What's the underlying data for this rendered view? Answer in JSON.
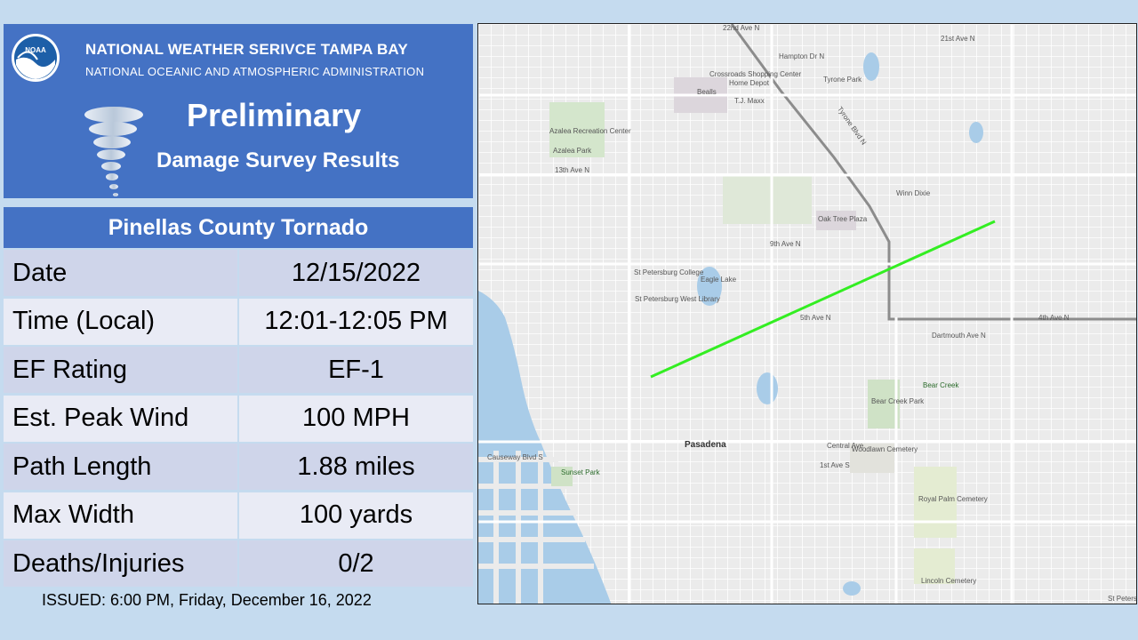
{
  "header": {
    "org_name": "NATIONAL WEATHER SERIVCE TAMPA BAY",
    "org_sub": "NATIONAL OCEANIC AND ATMOSPHERIC ADMINISTRATION",
    "logo_text": "NOAA",
    "title": "Preliminary",
    "subtitle": "Damage Survey Results"
  },
  "table": {
    "title": "Pinellas County Tornado",
    "rows": [
      {
        "label": "Date",
        "value": "12/15/2022"
      },
      {
        "label": "Time (Local)",
        "value": "12:01-12:05 PM"
      },
      {
        "label": "EF Rating",
        "value": "EF-1"
      },
      {
        "label": "Est. Peak Wind",
        "value": "100 MPH"
      },
      {
        "label": "Path Length",
        "value": "1.88 miles"
      },
      {
        "label": "Max Width",
        "value": "100 yards"
      },
      {
        "label": "Deaths/Injuries",
        "value": "0/2"
      }
    ]
  },
  "issued": "ISSUED:  6:00 PM, Friday, December 16, 2022",
  "map": {
    "labels": {
      "crossroads": "Crossroads Shopping Center",
      "home_depot": "Home Depot",
      "tj_maxx": "T.J. Maxx",
      "bealls": "Bealls",
      "tyrone_park": "Tyrone Park",
      "azalea": "Azalea Recreation Center",
      "azalea_park": "Azalea Park",
      "oak_tree": "Oak Tree Plaza",
      "win_dixie": "Winn Dixie",
      "spc": "St Petersburg College",
      "eagle_lake": "Eagle Lake",
      "spwl": "St Petersburg West Library",
      "pasadena": "Pasadena",
      "bear_creek": "Bear Creek",
      "bear_creek_park": "Bear Creek Park",
      "sunset_park": "Sunset Park",
      "woodlawn": "Woodlawn Cemetery",
      "royal_palm": "Royal Palm Cemetery",
      "lincoln": "Lincoln Cemetery",
      "causeway": "Causeway Blvd S",
      "ave_5th": "5th Ave N",
      "ave_9th": "9th Ave N",
      "ave_22nd": "22nd Ave N",
      "ave_21st": "21st Ave N",
      "ave_13th": "13th Ave N",
      "ave_1st_s": "1st Ave S",
      "central_ave": "Central Ave",
      "dartmouth": "Dartmouth Ave N",
      "tyrone_blvd": "Tyrone Blvd N",
      "ave_4th_e": "4th Ave N",
      "hampton": "Hampton Dr N",
      "st_pete": "St Petersb"
    }
  }
}
